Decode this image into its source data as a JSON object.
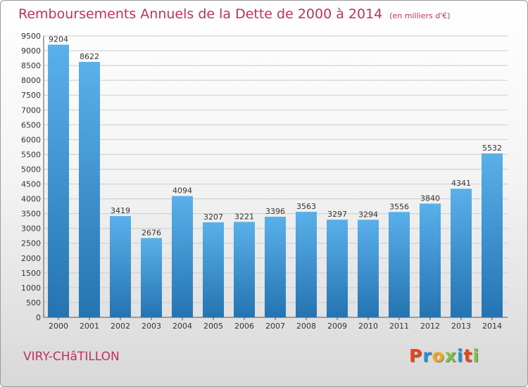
{
  "title": "Remboursements Annuels de la Dette de 2000 à 2014",
  "title_unit": "(en milliers d'€)",
  "commune": "VIRY-CHâTILLON",
  "logo": {
    "letters": [
      "P",
      "r",
      "o",
      "x",
      "i",
      "t",
      "i"
    ],
    "colors": [
      "#e8441c",
      "#2a8fd8",
      "#f0a81e",
      "#7cc242",
      "#2a8fd8",
      "#e8441c",
      "#7cc242"
    ]
  },
  "colors": {
    "bar_top": "#5ab0ea",
    "bar_bottom": "#2474b2",
    "title": "#c0305e",
    "grid": "#cccccc"
  },
  "chart_data": {
    "type": "bar",
    "title": "Remboursements Annuels de la Dette de 2000 à 2014",
    "xlabel": "",
    "ylabel": "",
    "categories": [
      "2000",
      "2001",
      "2002",
      "2003",
      "2004",
      "2005",
      "2006",
      "2007",
      "2008",
      "2009",
      "2010",
      "2011",
      "2012",
      "2013",
      "2014"
    ],
    "values": [
      9204,
      8622,
      3419,
      2676,
      4094,
      3207,
      3221,
      3396,
      3563,
      3297,
      3294,
      3556,
      3840,
      4341,
      5532
    ],
    "ylim": [
      0,
      9500
    ],
    "yticks": [
      0,
      500,
      1000,
      1500,
      2000,
      2500,
      3000,
      3500,
      4000,
      4500,
      5000,
      5500,
      6000,
      6500,
      7000,
      7500,
      8000,
      8500,
      9000,
      9500
    ],
    "grid": true
  }
}
